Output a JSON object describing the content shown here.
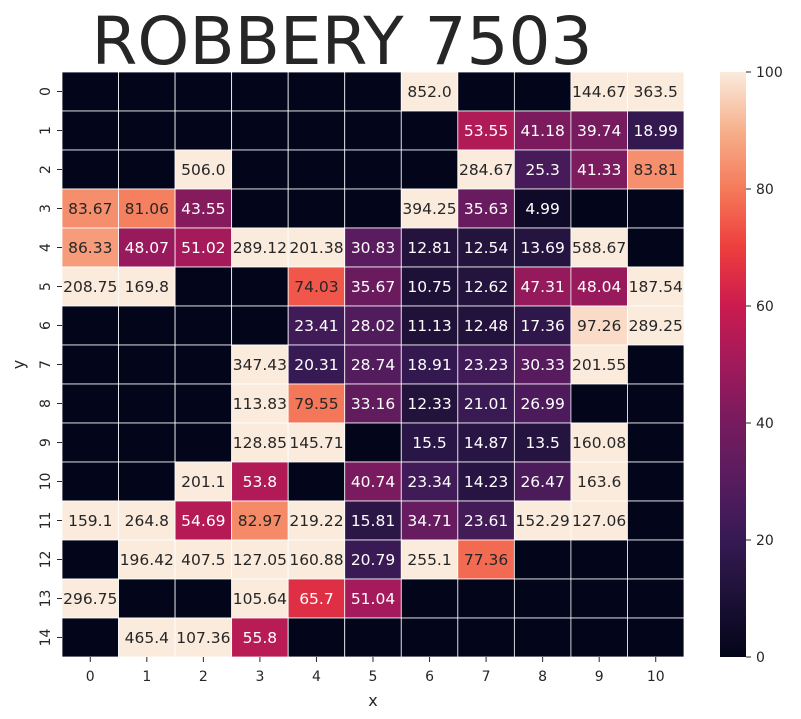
{
  "chart_data": {
    "type": "heatmap",
    "title": "ROBBERY 7503",
    "xlabel": "x",
    "ylabel": "y",
    "x_categories": [
      "0",
      "1",
      "2",
      "3",
      "4",
      "5",
      "6",
      "7",
      "8",
      "9",
      "10"
    ],
    "y_categories": [
      "0",
      "1",
      "2",
      "3",
      "4",
      "5",
      "6",
      "7",
      "8",
      "9",
      "10",
      "11",
      "12",
      "13",
      "14"
    ],
    "colorbar": {
      "min": 0,
      "max": 100,
      "ticks": [
        "0",
        "20",
        "40",
        "60",
        "80",
        "100"
      ]
    },
    "colormap": "rocket",
    "grid": "white cell borders",
    "values": [
      [
        null,
        null,
        null,
        null,
        null,
        null,
        "852.0",
        null,
        null,
        "144.67",
        "363.5"
      ],
      [
        null,
        null,
        null,
        null,
        null,
        null,
        null,
        "53.55",
        "41.18",
        "39.74",
        "18.99"
      ],
      [
        null,
        null,
        "506.0",
        null,
        null,
        null,
        null,
        "284.67",
        "25.3",
        "41.33",
        "83.81"
      ],
      [
        "83.67",
        "81.06",
        "43.55",
        null,
        null,
        null,
        "394.25",
        "35.63",
        "4.99",
        null,
        null
      ],
      [
        "86.33",
        "48.07",
        "51.02",
        "289.12",
        "201.38",
        "30.83",
        "12.81",
        "12.54",
        "13.69",
        "588.67",
        null
      ],
      [
        "208.75",
        "169.8",
        null,
        null,
        "74.03",
        "35.67",
        "10.75",
        "12.62",
        "47.31",
        "48.04",
        "187.54"
      ],
      [
        null,
        null,
        null,
        null,
        "23.41",
        "28.02",
        "11.13",
        "12.48",
        "17.36",
        "97.26",
        "289.25"
      ],
      [
        null,
        null,
        null,
        "347.43",
        "20.31",
        "28.74",
        "18.91",
        "23.23",
        "30.33",
        "201.55",
        null
      ],
      [
        null,
        null,
        null,
        "113.83",
        "79.55",
        "33.16",
        "12.33",
        "21.01",
        "26.99",
        null,
        null
      ],
      [
        null,
        null,
        null,
        "128.85",
        "145.71",
        null,
        "15.5",
        "14.87",
        "13.5",
        "160.08",
        null
      ],
      [
        null,
        null,
        "201.1",
        "53.8",
        null,
        "40.74",
        "23.34",
        "14.23",
        "26.47",
        "163.6",
        null
      ],
      [
        "159.1",
        "264.8",
        "54.69",
        "82.97",
        "219.22",
        "15.81",
        "34.71",
        "23.61",
        "152.29",
        "127.06",
        null
      ],
      [
        null,
        "196.42",
        "407.5",
        "127.05",
        "160.88",
        "20.79",
        "255.1",
        "77.36",
        null,
        null,
        null
      ],
      [
        "296.75",
        null,
        null,
        "105.64",
        "65.7",
        "51.04",
        null,
        null,
        null,
        null,
        null
      ],
      [
        null,
        "465.4",
        "107.36",
        "55.8",
        null,
        null,
        null,
        null,
        null,
        null,
        null
      ]
    ]
  }
}
